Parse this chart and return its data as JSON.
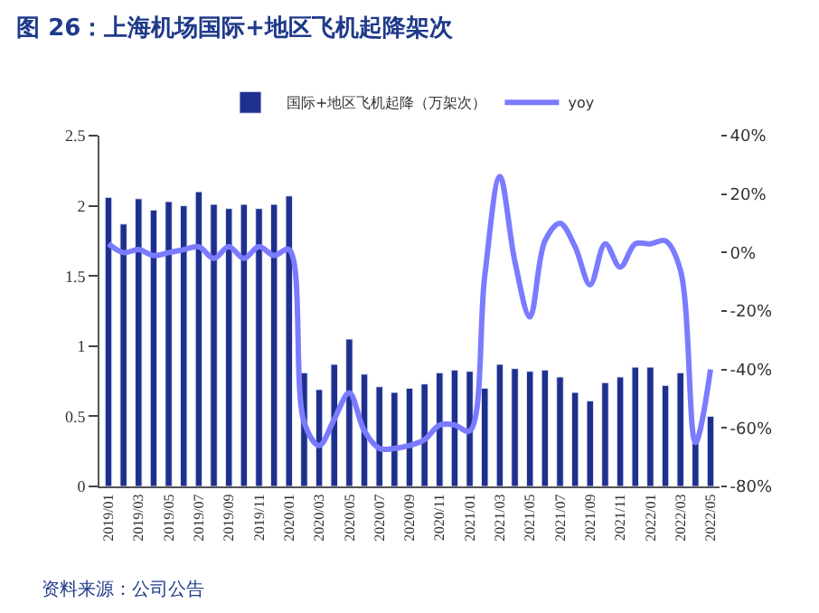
{
  "chart_data": {
    "type": "bar",
    "title": "图 26：上海机场国际+地区飞机起降架次",
    "categories": [
      "2019/01",
      null,
      "2019/03",
      null,
      "2019/05",
      null,
      "2019/07",
      null,
      "2019/09",
      null,
      "2019/11",
      null,
      "2020/01",
      null,
      "2020/03",
      null,
      "2020/05",
      null,
      "2020/07",
      null,
      "2020/09",
      null,
      "2020/11",
      null,
      "2021/01",
      null,
      "2021/03",
      null,
      "2021/05",
      null,
      "2021/07",
      null,
      "2021/09",
      null,
      "2021/11",
      null,
      "2022/01",
      null,
      "2022/03",
      null,
      "2022/05"
    ],
    "series": [
      {
        "name": "国际+地区飞机起降（万架次）",
        "color": "#1f2f8f",
        "values": [
          2.06,
          1.87,
          2.05,
          1.97,
          2.03,
          2.0,
          2.1,
          2.01,
          1.98,
          2.01,
          1.98,
          2.01,
          2.07,
          0.81,
          0.69,
          0.87,
          1.05,
          0.8,
          0.71,
          0.67,
          0.7,
          0.73,
          0.81,
          0.83,
          0.82,
          0.7,
          0.87,
          0.84,
          0.82,
          0.83,
          0.78,
          0.67,
          0.61,
          0.74,
          0.78,
          0.85,
          0.85,
          0.72,
          0.81,
          0.31,
          0.5
        ]
      },
      {
        "name": "yoy",
        "type": "line",
        "axis": "y2",
        "color": "#7b7bff",
        "values": [
          3,
          0,
          1,
          -1,
          0,
          1,
          2,
          -2,
          2,
          -2,
          2,
          -1,
          1,
          -58,
          -66,
          -57,
          -48,
          -61,
          -67,
          -67,
          -66,
          -64,
          -59,
          -59,
          -61,
          -8,
          26,
          -3,
          -22,
          4,
          10,
          2,
          -11,
          3,
          -5,
          3,
          3,
          4,
          -6,
          -65,
          -40
        ]
      }
    ],
    "ylim": [
      0,
      2.5
    ],
    "yticks": [
      0,
      0.5,
      1,
      1.5,
      2,
      2.5
    ],
    "y2lim": [
      -80,
      40
    ],
    "y2ticks": [
      {
        "value": -80,
        "label": "-80%"
      },
      {
        "value": -60,
        "label": "-60%"
      },
      {
        "value": -40,
        "label": "-40%"
      },
      {
        "value": -20,
        "label": "-20%"
      },
      {
        "value": 0,
        "label": "0%"
      },
      {
        "value": 20,
        "label": "20%"
      },
      {
        "value": 40,
        "label": "40%"
      }
    ],
    "legend": "top",
    "annotations": [
      "资料来源：公司公告"
    ]
  }
}
